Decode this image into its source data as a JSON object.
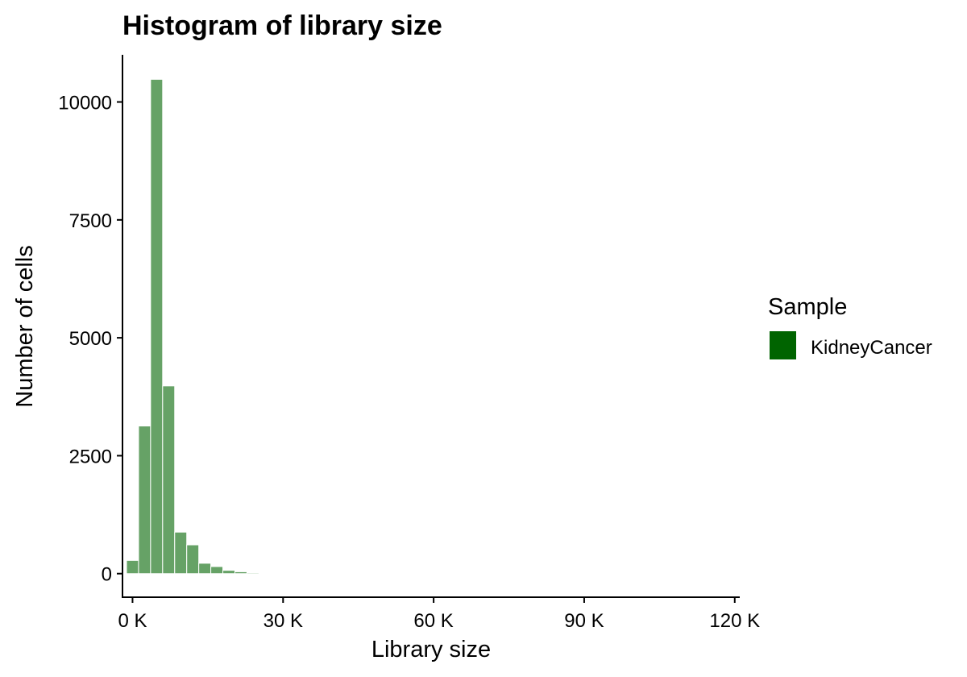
{
  "chart_data": {
    "type": "bar",
    "title": "Histogram of library size",
    "xlabel": "Library size",
    "ylabel": "Number of cells",
    "xlim": [
      -2000,
      121000
    ],
    "ylim": [
      -500,
      11000
    ],
    "x_ticks": [
      0,
      30000,
      60000,
      90000,
      120000
    ],
    "x_tick_labels": [
      "0 K",
      "30 K",
      "60 K",
      "90 K",
      "120 K"
    ],
    "y_ticks": [
      0,
      2500,
      5000,
      7500,
      10000
    ],
    "y_tick_labels": [
      "0",
      "2500",
      "5000",
      "7500",
      "10000"
    ],
    "bin_width": 2400,
    "bin_start": -1200,
    "bins_x": [
      0,
      2400,
      4800,
      7200,
      9600,
      12000,
      14400,
      16800,
      19200,
      21600,
      24000,
      26400,
      28800,
      31200,
      33600,
      36000,
      38400,
      40800,
      43200,
      45600,
      48000,
      50400,
      52800,
      55200,
      57600,
      60000,
      62400,
      64800,
      67200,
      69600,
      72000,
      74400,
      76800,
      79200,
      81600,
      84000,
      86400,
      88800,
      91200,
      93600,
      96000,
      98400,
      100800,
      103200,
      105600,
      108000,
      110400,
      112800,
      115200
    ],
    "counts": [
      280,
      3130,
      10480,
      3980,
      880,
      610,
      220,
      150,
      70,
      40,
      20,
      10,
      5,
      3,
      2,
      1,
      1,
      1,
      1,
      1,
      1,
      1,
      1,
      1,
      1,
      1,
      1,
      1,
      1,
      1,
      1,
      1,
      1,
      1,
      1,
      1,
      1,
      1,
      1,
      1,
      1,
      1,
      1,
      1,
      1,
      1,
      1,
      1,
      1
    ],
    "fill_color": "#006400",
    "fill_opacity": 0.6,
    "border_color": "#ffffff",
    "grid": false,
    "legend": {
      "title": "Sample",
      "placement": "right",
      "entries": [
        {
          "label": "KidneyCancer",
          "color": "#006400"
        }
      ]
    }
  }
}
